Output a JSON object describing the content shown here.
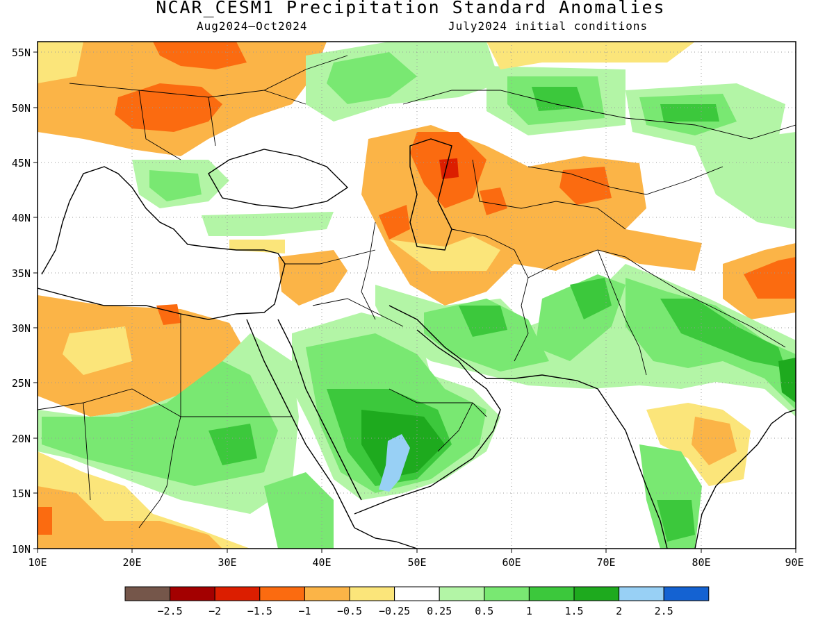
{
  "title": "NCAR_CESM1 Precipitation Standard Anomalies",
  "subtitle_left": "Aug2024–Oct2024",
  "subtitle_right": "July2024 initial conditions",
  "map": {
    "lon_range": [
      10,
      90
    ],
    "lat_range": [
      10,
      56
    ],
    "lon_ticks": [
      "10E",
      "20E",
      "30E",
      "40E",
      "50E",
      "60E",
      "70E",
      "80E",
      "90E"
    ],
    "lat_ticks": [
      "10N",
      "15N",
      "20N",
      "25N",
      "30N",
      "35N",
      "40N",
      "45N",
      "50N",
      "55N"
    ],
    "gridlines": "dotted",
    "anomaly_regions": [
      {
        "area": "Central & Eastern Europe",
        "category": "-1.5"
      },
      {
        "area": "North Caspian / Kazakhstan",
        "category": "-1.5"
      },
      {
        "area": "Uzbekistan / Kyrgyzstan",
        "category": "-1"
      },
      {
        "area": "Tibetan Plateau",
        "category": "-1.5"
      },
      {
        "area": "Libya / Egypt",
        "category": "-0.5"
      },
      {
        "area": "Eastern Iran",
        "category": "-0.5"
      },
      {
        "area": "Central India",
        "category": "-0.5"
      },
      {
        "area": "Sahel / Sudan",
        "category": "1"
      },
      {
        "area": "Arabian Peninsula",
        "category": "1.5"
      },
      {
        "area": "Empty Quarter",
        "category": "2"
      },
      {
        "area": "Pakistan / South Iran",
        "category": "1.5"
      },
      {
        "area": "Northern India / Nepal",
        "category": "1.5"
      },
      {
        "area": "Kazakh Steppe",
        "category": "1.5"
      }
    ]
  },
  "legend": {
    "colors": [
      "#75564a",
      "#a30000",
      "#dc1e00",
      "#fb6b10",
      "#fbb447",
      "#fbe57a",
      "#ffffff",
      "#b3f5a6",
      "#79e872",
      "#3cc83c",
      "#1eaa1e",
      "#98d0f5",
      "#1462d2"
    ],
    "labels": [
      "−2.5",
      "−2",
      "−1.5",
      "−1",
      "−0.5",
      "−0.25",
      "0.25",
      "0.5",
      "1",
      "1.5",
      "2",
      "2.5"
    ]
  }
}
